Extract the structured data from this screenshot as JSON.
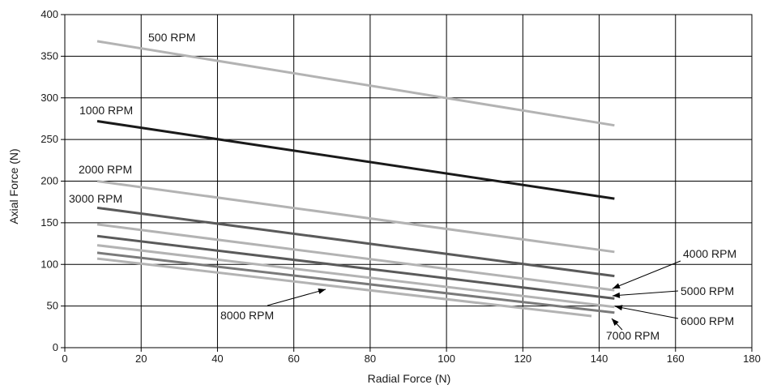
{
  "chart_data": {
    "type": "line",
    "title": "",
    "xlabel": "Radial Force (N)",
    "ylabel": "Axial Force (N)",
    "xlim": [
      0,
      180
    ],
    "ylim": [
      0,
      400
    ],
    "x_ticks": [
      0,
      20,
      40,
      60,
      80,
      100,
      120,
      140,
      160,
      180
    ],
    "y_ticks": [
      0,
      50,
      100,
      150,
      200,
      250,
      300,
      350,
      400
    ],
    "grid": true,
    "legend": "none (series labelled directly on the plot)",
    "series": [
      {
        "name": "500 RPM",
        "color": "#b3b3b3",
        "x": [
          8.5,
          144
        ],
        "y": [
          368,
          267
        ]
      },
      {
        "name": "1000 RPM",
        "color": "#1a1a1a",
        "x": [
          8.5,
          144
        ],
        "y": [
          272,
          179
        ]
      },
      {
        "name": "2000 RPM",
        "color": "#b3b3b3",
        "x": [
          8.5,
          144
        ],
        "y": [
          200,
          115
        ]
      },
      {
        "name": "3000 RPM",
        "color": "#5a5a5a",
        "x": [
          8.5,
          144
        ],
        "y": [
          168,
          86
        ]
      },
      {
        "name": "4000 RPM",
        "color": "#b3b3b3",
        "x": [
          8.5,
          144
        ],
        "y": [
          148,
          69
        ]
      },
      {
        "name": "5000 RPM",
        "color": "#5a5a5a",
        "x": [
          8.5,
          144
        ],
        "y": [
          134,
          59
        ]
      },
      {
        "name": "6000 RPM",
        "color": "#b3b3b3",
        "x": [
          8.5,
          144
        ],
        "y": [
          123,
          49
        ]
      },
      {
        "name": "7000 RPM",
        "color": "#7a7a7a",
        "x": [
          8.5,
          144
        ],
        "y": [
          114,
          42
        ]
      },
      {
        "name": "8000 RPM",
        "color": "#b3b3b3",
        "x": [
          8.5,
          138
        ],
        "y": [
          107,
          38
        ]
      }
    ]
  }
}
